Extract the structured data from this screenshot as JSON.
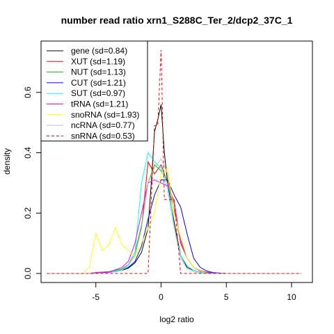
{
  "chart_data": {
    "type": "line",
    "title": "number read ratio xrn1_S288C_Ter_2/dcp2_37C_1",
    "xlabel": "log2 ratio",
    "ylabel": "density",
    "xlim": [
      -9.2,
      11.6
    ],
    "ylim": [
      -0.03,
      0.77
    ],
    "x_ticks": [
      -5,
      0,
      5,
      10
    ],
    "x_tick_labels": [
      "-5",
      "0",
      "5",
      "10"
    ],
    "y_ticks": [
      0.0,
      0.2,
      0.4,
      0.6
    ],
    "y_tick_labels": [
      "0.0",
      "0.2",
      "0.4",
      "0.6"
    ],
    "grid": false,
    "legend_position": "top-left",
    "series": [
      {
        "name": "gene (sd=0.84)",
        "color": "#000000",
        "dash": "solid",
        "x": [
          -8.75,
          -5.5,
          -5,
          -4.5,
          -4,
          -3.5,
          -3,
          -2.5,
          -2,
          -1.5,
          -1,
          -0.75,
          -0.5,
          -0.25,
          0,
          0.25,
          0.5,
          1,
          1.5,
          2,
          2.5,
          3,
          3.5,
          4,
          5,
          10.75
        ],
        "y": [
          0,
          0,
          0.003,
          0.003,
          0.004,
          0.006,
          0.01,
          0.018,
          0.035,
          0.07,
          0.15,
          0.3,
          0.47,
          0.51,
          0.56,
          0.4,
          0.3,
          0.17,
          0.06,
          0.02,
          0.01,
          0.004,
          0.002,
          0.001,
          0,
          0
        ]
      },
      {
        "name": "XUT (sd=1.19)",
        "color": "#ff0000",
        "dash": "solid",
        "x": [
          -8.75,
          -5.5,
          -5,
          -4,
          -3,
          -2.5,
          -2,
          -1.5,
          -1,
          -0.5,
          0,
          0.5,
          1,
          1.5,
          2,
          2.5,
          3,
          3.5,
          4,
          5,
          10.75
        ],
        "y": [
          0,
          0,
          0.003,
          0.006,
          0.015,
          0.03,
          0.06,
          0.15,
          0.37,
          0.33,
          0.36,
          0.3,
          0.21,
          0.11,
          0.05,
          0.02,
          0.01,
          0.004,
          0.002,
          0,
          0
        ]
      },
      {
        "name": "NUT (sd=1.13)",
        "color": "#00cc00",
        "dash": "solid",
        "x": [
          -8.75,
          -5.5,
          -5,
          -4,
          -3,
          -2.5,
          -2,
          -1.5,
          -1,
          -0.5,
          0,
          0.5,
          1,
          1.5,
          2,
          2.5,
          3,
          3.5,
          4,
          5,
          10.75
        ],
        "y": [
          0,
          0,
          0.003,
          0.006,
          0.015,
          0.03,
          0.07,
          0.16,
          0.3,
          0.36,
          0.34,
          0.31,
          0.23,
          0.1,
          0.05,
          0.02,
          0.008,
          0.004,
          0.002,
          0,
          0
        ]
      },
      {
        "name": "CUT (sd=1.21)",
        "color": "#0000ff",
        "dash": "solid",
        "x": [
          -8.75,
          -5.5,
          -5,
          -4,
          -3,
          -2.5,
          -2,
          -1.5,
          -1,
          -0.5,
          0,
          0.5,
          1,
          1.5,
          2,
          2.5,
          3,
          3.5,
          4,
          5,
          10.75
        ],
        "y": [
          0,
          0,
          0.003,
          0.005,
          0.01,
          0.02,
          0.04,
          0.09,
          0.18,
          0.26,
          0.31,
          0.31,
          0.26,
          0.22,
          0.13,
          0.05,
          0.02,
          0.008,
          0.003,
          0,
          0
        ]
      },
      {
        "name": "SUT (sd=0.97)",
        "color": "#00ffff",
        "dash": "solid",
        "x": [
          -8.75,
          -5.5,
          -5,
          -4,
          -3,
          -2.5,
          -2,
          -1.5,
          -1,
          -0.5,
          0,
          0.5,
          1,
          1.5,
          2,
          2.5,
          3,
          3.5,
          4,
          5,
          10.75
        ],
        "y": [
          0,
          0,
          0.003,
          0.005,
          0.012,
          0.025,
          0.07,
          0.3,
          0.4,
          0.37,
          0.35,
          0.28,
          0.15,
          0.06,
          0.025,
          0.01,
          0.004,
          0.002,
          0.001,
          0,
          0
        ]
      },
      {
        "name": "tRNA (sd=1.21)",
        "color": "#ff00ff",
        "dash": "solid",
        "x": [
          -8.75,
          -5.5,
          -5,
          -4,
          -3,
          -2.5,
          -2,
          -1.5,
          -1,
          -0.5,
          0,
          0.5,
          1,
          1.5,
          2,
          2.5,
          3,
          3.5,
          4,
          5,
          10.75
        ],
        "y": [
          0,
          0,
          0.003,
          0.005,
          0.02,
          0.04,
          0.1,
          0.2,
          0.3,
          0.31,
          0.3,
          0.29,
          0.24,
          0.1,
          0.05,
          0.02,
          0.008,
          0.003,
          0.001,
          0,
          0
        ]
      },
      {
        "name": "snoRNA (sd=1.93)",
        "color": "#ffff00",
        "dash": "solid",
        "x": [
          -8.75,
          -6,
          -5.5,
          -5,
          -4.5,
          -4,
          -3.5,
          -3,
          -2.5,
          -2,
          -1.5,
          -1,
          -0.5,
          0,
          0.5,
          1,
          1.5,
          2,
          2.5,
          3,
          3.5,
          4,
          10.75
        ],
        "y": [
          0,
          0,
          0.02,
          0.133,
          0.076,
          0.095,
          0.152,
          0.095,
          0.076,
          0.055,
          0.1,
          0.15,
          0.2,
          0.33,
          0.35,
          0.2,
          0.12,
          0.05,
          0.02,
          0.01,
          0,
          0,
          0
        ]
      },
      {
        "name": "ncRNA (sd=0.77)",
        "color": "#bebebe",
        "dash": "solid",
        "x": [
          -8.75,
          -5,
          -4,
          -3,
          -2.5,
          -2,
          -1.5,
          -1,
          -0.5,
          0,
          0.5,
          1,
          1.5,
          2,
          2.5,
          3,
          4,
          10.75
        ],
        "y": [
          0,
          0,
          0.002,
          0.01,
          0.03,
          0.06,
          0.15,
          0.3,
          0.35,
          0.38,
          0.33,
          0.15,
          0.05,
          0.015,
          0.005,
          0.001,
          0,
          0
        ]
      },
      {
        "name": "snRNA (sd=0.53)",
        "color": "#ff0000",
        "dash": "dashed",
        "x": [
          -8.75,
          -1.5,
          -1,
          -0.5,
          -0.25,
          0,
          0.25,
          0.5,
          1,
          1.5,
          2,
          2.5,
          10.75
        ],
        "y": [
          0,
          0,
          0,
          0.49,
          0.49,
          0.74,
          0.245,
          0.245,
          0.245,
          0,
          0,
          0,
          0
        ]
      }
    ]
  }
}
